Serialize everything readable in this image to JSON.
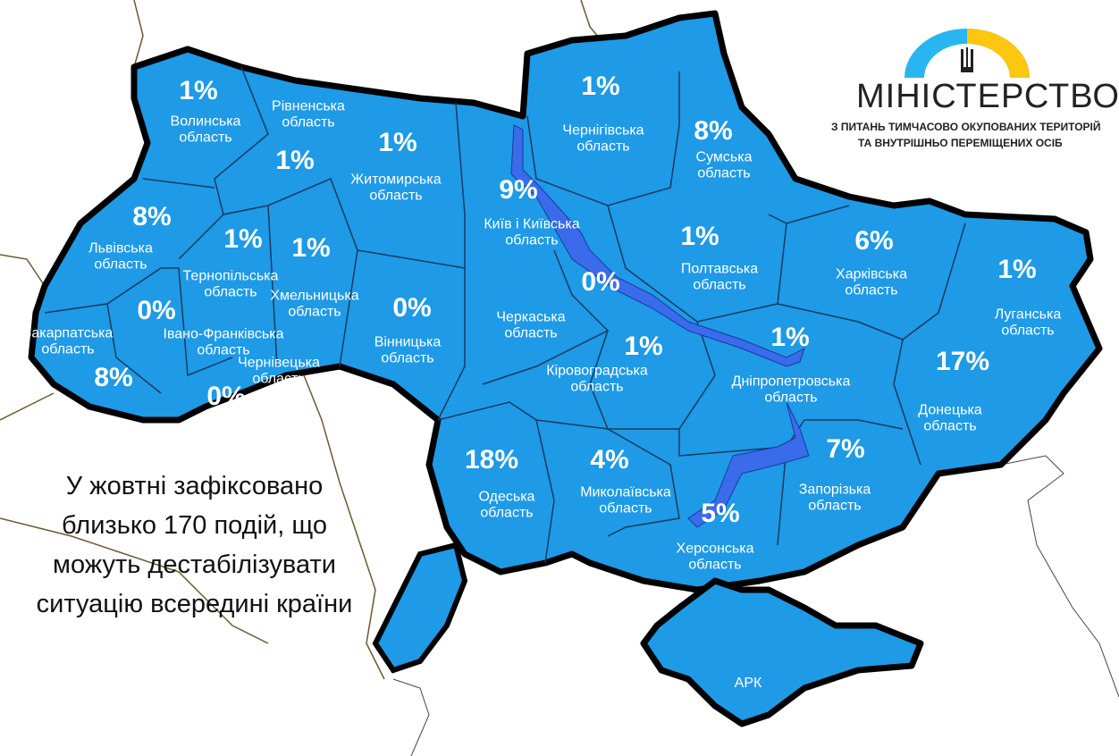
{
  "colors": {
    "region_fill": "#1e9ae6",
    "border": "#000000",
    "river": "#3a6bea",
    "neighbor_border": "#6b5a2e"
  },
  "logo": {
    "title": "МІНІСТЕРСТВО",
    "line1": "З ПИТАНЬ ТИМЧАСОВО ОКУПОВАНИХ ТЕРИТОРІЙ",
    "line2": "ТА ВНУТРІШНЬО ПЕРЕМІЩЕНИХ ОСІБ",
    "emblem": "trident-icon"
  },
  "caption": "У жовтні зафіксовано близько 170 подій, що можуть дестабілізувати ситуацію всередині країни",
  "regions": [
    {
      "name": "Волинська область",
      "pct": "1%"
    },
    {
      "name": "Рівненська область",
      "pct": "1%"
    },
    {
      "name": "Житомирська область",
      "pct": "1%"
    },
    {
      "name": "Київ і Київська область",
      "pct": "9%"
    },
    {
      "name": "Чернігівська область",
      "pct": "1%"
    },
    {
      "name": "Сумська область",
      "pct": "8%"
    },
    {
      "name": "Львівська область",
      "pct": "8%"
    },
    {
      "name": "Тернопільська область",
      "pct": "1%"
    },
    {
      "name": "Хмельницька область",
      "pct": "1%"
    },
    {
      "name": "Вінницька область",
      "pct": "0%"
    },
    {
      "name": "Черкаська область",
      "pct": "0%"
    },
    {
      "name": "Полтавська область",
      "pct": "1%"
    },
    {
      "name": "Харківська область",
      "pct": "6%"
    },
    {
      "name": "Луганська область",
      "pct": "1%"
    },
    {
      "name": "Закарпатська область",
      "pct": "8%"
    },
    {
      "name": "Івано-Франківська область",
      "pct": "0%"
    },
    {
      "name": "Чернівецька область",
      "pct": "0%"
    },
    {
      "name": "Кіровоградська область",
      "pct": "1%"
    },
    {
      "name": "Дніпропетровська область",
      "pct": "1%"
    },
    {
      "name": "Донецька область",
      "pct": "17%"
    },
    {
      "name": "Одеська область",
      "pct": "18%"
    },
    {
      "name": "Миколаївська область",
      "pct": "4%"
    },
    {
      "name": "Запорізька область",
      "pct": "7%"
    },
    {
      "name": "Херсонська область",
      "pct": "5%"
    },
    {
      "name": "АРК",
      "pct": ""
    }
  ]
}
